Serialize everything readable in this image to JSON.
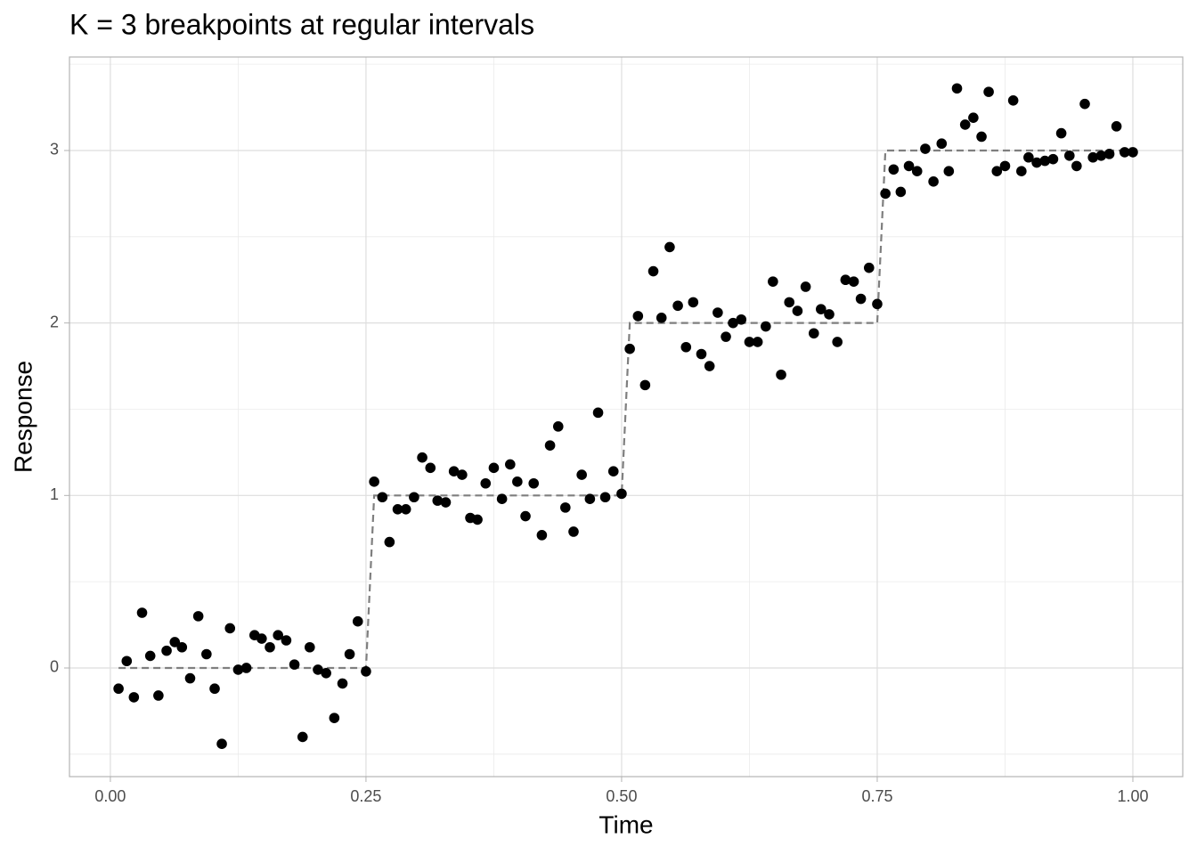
{
  "chart_data": {
    "type": "scatter",
    "title": "K = 3 breakpoints at regular intervals",
    "x_label": "Time",
    "y_label": "Response",
    "color": "#000000",
    "x": [
      0.008,
      0.016,
      0.023,
      0.031,
      0.039,
      0.047,
      0.055,
      0.063,
      0.07,
      0.078,
      0.086,
      0.094,
      0.102,
      0.109,
      0.117,
      0.125,
      0.133,
      0.141,
      0.148,
      0.156,
      0.164,
      0.172,
      0.18,
      0.188,
      0.195,
      0.203,
      0.211,
      0.219,
      0.227,
      0.234,
      0.242,
      0.25,
      0.258,
      0.266,
      0.273,
      0.281,
      0.289,
      0.297,
      0.305,
      0.313,
      0.32,
      0.328,
      0.336,
      0.344,
      0.352,
      0.359,
      0.367,
      0.375,
      0.383,
      0.391,
      0.398,
      0.406,
      0.414,
      0.422,
      0.43,
      0.438,
      0.445,
      0.453,
      0.461,
      0.469,
      0.477,
      0.484,
      0.492,
      0.5,
      0.508,
      0.516,
      0.523,
      0.531,
      0.539,
      0.547,
      0.555,
      0.563,
      0.57,
      0.578,
      0.586,
      0.594,
      0.602,
      0.609,
      0.617,
      0.625,
      0.633,
      0.641,
      0.648,
      0.656,
      0.664,
      0.672,
      0.68,
      0.688,
      0.695,
      0.703,
      0.711,
      0.719,
      0.727,
      0.734,
      0.742,
      0.75,
      0.758,
      0.766,
      0.773,
      0.781,
      0.789,
      0.797,
      0.805,
      0.813,
      0.82,
      0.828,
      0.836,
      0.844,
      0.852,
      0.859,
      0.867,
      0.875,
      0.883,
      0.891,
      0.898,
      0.906,
      0.914,
      0.922,
      0.93,
      0.938,
      0.945,
      0.953,
      0.961,
      0.969,
      0.977,
      0.984,
      0.992,
      1
    ],
    "values": [
      -0.12,
      0.04,
      -0.17,
      0.32,
      0.07,
      -0.16,
      0.1,
      0.15,
      0.12,
      -0.06,
      0.3,
      0.08,
      -0.12,
      -0.44,
      0.23,
      -0.01,
      0.0,
      0.19,
      0.17,
      0.12,
      0.19,
      0.16,
      0.02,
      -0.4,
      0.12,
      -0.01,
      -0.03,
      -0.29,
      -0.09,
      0.08,
      0.27,
      -0.02,
      1.08,
      0.99,
      0.73,
      0.92,
      0.92,
      0.99,
      1.22,
      1.16,
      0.97,
      0.96,
      1.14,
      1.12,
      0.87,
      0.86,
      1.07,
      1.16,
      0.98,
      1.18,
      1.08,
      0.88,
      1.07,
      0.77,
      1.29,
      1.4,
      0.93,
      0.79,
      1.12,
      0.98,
      1.48,
      0.99,
      1.14,
      1.01,
      1.85,
      2.04,
      1.64,
      2.3,
      2.03,
      2.44,
      2.1,
      1.86,
      2.12,
      1.82,
      1.75,
      2.06,
      1.92,
      2.0,
      2.02,
      1.89,
      1.89,
      1.98,
      2.24,
      1.7,
      2.12,
      2.07,
      2.21,
      1.94,
      2.08,
      2.05,
      1.89,
      2.25,
      2.24,
      2.14,
      2.32,
      2.11,
      2.75,
      2.89,
      2.76,
      2.91,
      2.88,
      3.01,
      2.82,
      3.04,
      2.88,
      3.36,
      3.15,
      3.19,
      3.08,
      3.34,
      2.88,
      2.91,
      3.29,
      2.88,
      2.96,
      2.93,
      2.94,
      2.95,
      3.1,
      2.97,
      2.91,
      3.27,
      2.96,
      2.97,
      2.98,
      3.14,
      2.99,
      2.99
    ],
    "line": {
      "x": [
        0.008,
        0.25,
        0.258,
        0.5,
        0.508,
        0.75,
        0.758,
        1
      ],
      "values": [
        0,
        0,
        1,
        1,
        2,
        2,
        3,
        3
      ],
      "color": "#7f7f7f",
      "dashed": true
    },
    "xlim": [
      -0.04,
      1.0488
    ],
    "ylim": [
      -0.63,
      3.542
    ],
    "xticks": [
      {
        "value": 0,
        "label": "0.00"
      },
      {
        "value": 0.25,
        "label": "0.25"
      },
      {
        "value": 0.5,
        "label": "0.50"
      },
      {
        "value": 0.75,
        "label": "0.75"
      },
      {
        "value": 1,
        "label": "1.00"
      }
    ],
    "yticks": [
      0,
      1,
      2,
      3
    ],
    "minor_xticks": [
      0.125,
      0.375,
      0.625,
      0.875
    ],
    "minor_yticks": [
      -0.5,
      0.5,
      1.5,
      2.5,
      3.5
    ],
    "grid": true
  }
}
